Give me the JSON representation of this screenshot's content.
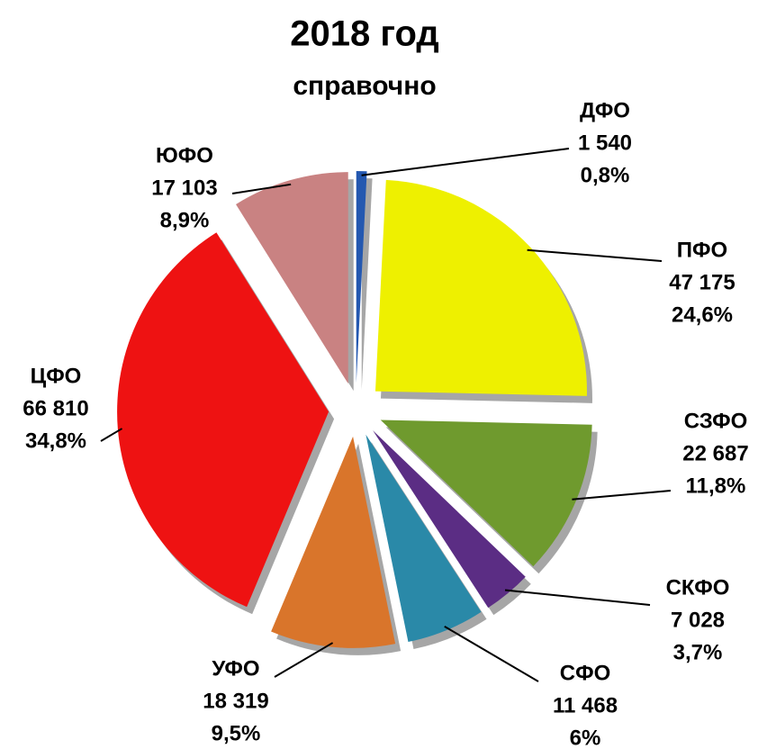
{
  "chart_data": {
    "type": "pie",
    "title": "2018 год",
    "subtitle": "справочно",
    "categories": [
      "ДФО",
      "ПФО",
      "СЗФО",
      "СКФО",
      "СФО",
      "УФО",
      "ЦФО",
      "ЮФО"
    ],
    "values": [
      1540,
      47175,
      22687,
      7028,
      11468,
      18319,
      66810,
      17103
    ],
    "value_labels": [
      "1 540",
      "47 175",
      "22 687",
      "7 028",
      "11 468",
      "18 319",
      "66 810",
      "17 103"
    ],
    "percents": [
      0.8,
      24.6,
      11.8,
      3.7,
      6,
      9.5,
      34.8,
      8.9
    ],
    "percent_labels": [
      "0,8%",
      "24,6%",
      "11,8%",
      "3,7%",
      "6%",
      "9,5%",
      "34,8%",
      "8,9%"
    ],
    "colors": [
      "#2458b0",
      "#eef000",
      "#6f9a2e",
      "#5b2d84",
      "#2a89a8",
      "#d9752b",
      "#ee1212",
      "#c98282"
    ]
  }
}
